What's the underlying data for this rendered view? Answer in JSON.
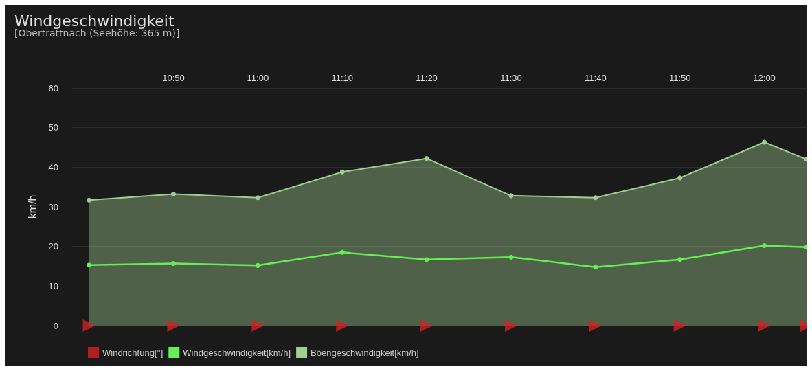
{
  "chart_data": {
    "type": "line",
    "title": "Windgeschwindigkeit",
    "subtitle": "[Obertrattnach (Seehöhe: 365 m)]",
    "ylabel": "km/h",
    "x": [
      10.6667,
      10.8333,
      11,
      11.1667,
      11.3333,
      11.5,
      11.6667,
      11.8333,
      12,
      12.0833
    ],
    "xlim": [
      10.6333,
      12.0833
    ],
    "xticks": [
      {
        "value": 10.8333,
        "label": "10:50"
      },
      {
        "value": 11,
        "label": "11:00"
      },
      {
        "value": 11.1667,
        "label": "11:10"
      },
      {
        "value": 11.3333,
        "label": "11:20"
      },
      {
        "value": 11.5,
        "label": "11:30"
      },
      {
        "value": 11.6667,
        "label": "11:40"
      },
      {
        "value": 11.8333,
        "label": "11:50"
      },
      {
        "value": 12,
        "label": "12:00"
      }
    ],
    "ylim": [
      0,
      60
    ],
    "yticks": [
      0,
      10,
      20,
      30,
      40,
      50,
      60
    ],
    "grid": "y",
    "legend": "bottom left",
    "marker": "circle",
    "series": [
      {
        "name": "Windrichtung[°]",
        "type": "scatter",
        "marker": "triangle",
        "color": "#d42020",
        "values": [
          0,
          0,
          0,
          0,
          0,
          0,
          0,
          0,
          0,
          0
        ]
      },
      {
        "name": "Windgeschwindigkeit[km/h]",
        "color": "#66ee55",
        "values": [
          15.3,
          15.7,
          15.2,
          18.5,
          16.7,
          17.3,
          14.8,
          16.7,
          20.2,
          19.8
        ]
      },
      {
        "name": "Böengeschwindigkeit[km/h]",
        "type": "area",
        "color": "#9fcf90",
        "values": [
          31.7,
          33.2,
          32.3,
          38.8,
          42.2,
          32.8,
          32.3,
          37.3,
          46.3,
          42
        ]
      }
    ]
  }
}
